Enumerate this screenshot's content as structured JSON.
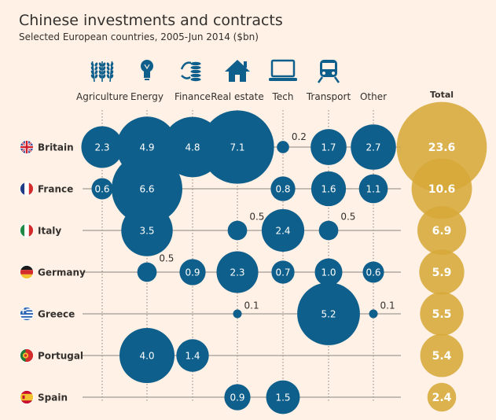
{
  "title": "Chinese investments and contracts",
  "subtitle": "Selected European countries, 2005-Jun 2014 ($bn)",
  "colors": {
    "background": "#fff1e5",
    "sector_bubble": "#0f5f8c",
    "total_bubble": "#d7a83a",
    "icon": "#0f5f8c",
    "grid": "#8a8581"
  },
  "chart_data": {
    "type": "bubble-matrix",
    "categories": [
      "Agriculture",
      "Energy",
      "Finance",
      "Real estate",
      "Tech",
      "Transport",
      "Other"
    ],
    "category_icons": [
      "wheat-icon",
      "lightbulb-icon",
      "coins-icon",
      "house-icon",
      "laptop-icon",
      "train-icon",
      "other-icon"
    ],
    "total_label": "Total",
    "countries": [
      {
        "name": "Britain",
        "flag": "uk-flag-icon",
        "values": [
          2.3,
          4.9,
          4.8,
          7.1,
          0.2,
          1.7,
          2.7
        ],
        "total": 23.6
      },
      {
        "name": "France",
        "flag": "france-flag-icon",
        "values": [
          0.6,
          6.6,
          null,
          null,
          0.8,
          1.6,
          1.1
        ],
        "total": 10.6
      },
      {
        "name": "Italy",
        "flag": "italy-flag-icon",
        "values": [
          null,
          3.5,
          null,
          0.5,
          2.4,
          0.5,
          null
        ],
        "total": 6.9
      },
      {
        "name": "Germany",
        "flag": "germany-flag-icon",
        "values": [
          null,
          0.5,
          0.9,
          2.3,
          0.7,
          1.0,
          0.6
        ],
        "total": 5.9
      },
      {
        "name": "Greece",
        "flag": "greece-flag-icon",
        "values": [
          null,
          null,
          null,
          0.1,
          null,
          5.2,
          0.1
        ],
        "total": 5.5
      },
      {
        "name": "Portugal",
        "flag": "portugal-flag-icon",
        "values": [
          null,
          4.0,
          1.4,
          null,
          null,
          null,
          null
        ],
        "total": 5.4
      },
      {
        "name": "Spain",
        "flag": "spain-flag-icon",
        "values": [
          null,
          null,
          null,
          0.9,
          1.5,
          null,
          null
        ],
        "total": 2.4
      }
    ]
  }
}
